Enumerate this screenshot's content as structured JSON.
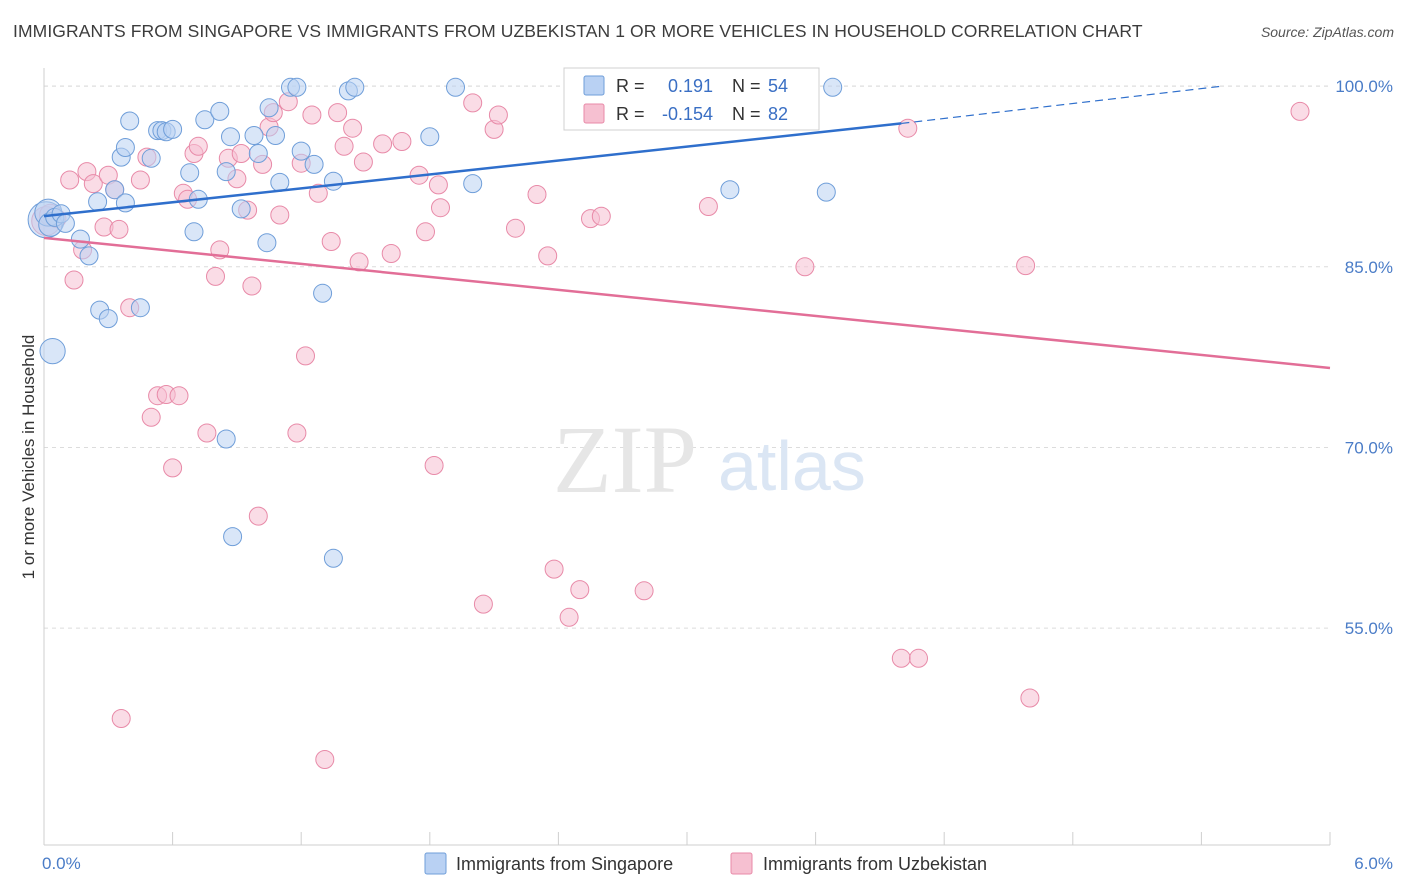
{
  "title": "IMMIGRANTS FROM SINGAPORE VS IMMIGRANTS FROM UZBEKISTAN 1 OR MORE VEHICLES IN HOUSEHOLD CORRELATION CHART",
  "source": "Source: ZipAtlas.com",
  "watermark": {
    "zip": "ZIP",
    "atlas": "atlas"
  },
  "colors": {
    "blue_fill": "#b9d1f3",
    "blue_stroke": "#6f9ed9",
    "blue_line": "#2f6fcc",
    "pink_fill": "#f6c0d1",
    "pink_stroke": "#e88aa8",
    "pink_line": "#e26e97",
    "grid": "#dcdcdc",
    "axis_label": "#4a7cc7"
  },
  "legend_box": {
    "rows": [
      {
        "r_label": "R =",
        "r_value": "0.191",
        "n_label": "N =",
        "n_value": "54",
        "series": "Singapore"
      },
      {
        "r_label": "R =",
        "r_value": "-0.154",
        "n_label": "N =",
        "n_value": "82",
        "series": "Uzbekistan"
      }
    ]
  },
  "chart_data": {
    "type": "scatter",
    "xlabel": "",
    "ylabel": "1 or more Vehicles in Household",
    "xlim": [
      0.0,
      6.0
    ],
    "ylim": [
      37.0,
      101.5
    ],
    "x_ticks": [
      "0.0%",
      "6.0%"
    ],
    "y_ticks": [
      {
        "value": 100.0,
        "label": "100.0%"
      },
      {
        "value": 85.0,
        "label": "85.0%"
      },
      {
        "value": 70.0,
        "label": "70.0%"
      },
      {
        "value": 55.0,
        "label": "55.0%"
      }
    ],
    "legend": [
      "Immigrants from Singapore",
      "Immigrants from Uzbekistan"
    ],
    "series": [
      {
        "name": "Immigrants from Singapore",
        "color": "#6f9ed9",
        "trend": {
          "x0": 0.0,
          "y0": 89.2,
          "x1": 4.0,
          "y1": 96.9,
          "dashed_to_x": 5.5,
          "dashed_to_y": 100.0
        },
        "points": [
          [
            0.01,
            88.9,
            2
          ],
          [
            0.02,
            89.5,
            1.5
          ],
          [
            0.03,
            88.5,
            1.3
          ],
          [
            0.05,
            89.1,
            1
          ],
          [
            0.08,
            89.4,
            1
          ],
          [
            0.1,
            88.6,
            1
          ],
          [
            0.17,
            87.3,
            1
          ],
          [
            0.21,
            85.9,
            1
          ],
          [
            0.04,
            78.0,
            1.4
          ],
          [
            0.26,
            81.4,
            1
          ],
          [
            0.3,
            80.7,
            1
          ],
          [
            0.45,
            81.6,
            1
          ],
          [
            0.33,
            91.4,
            1
          ],
          [
            0.38,
            90.3,
            1
          ],
          [
            0.25,
            90.4,
            1
          ],
          [
            0.36,
            94.1,
            1
          ],
          [
            0.38,
            94.9,
            1
          ],
          [
            0.4,
            97.1,
            1
          ],
          [
            0.5,
            94.0,
            1
          ],
          [
            0.53,
            96.3,
            1
          ],
          [
            0.55,
            96.3,
            1
          ],
          [
            0.57,
            96.2,
            1
          ],
          [
            0.6,
            96.4,
            1
          ],
          [
            0.68,
            92.8,
            1
          ],
          [
            0.7,
            87.9,
            1
          ],
          [
            0.72,
            90.6,
            1
          ],
          [
            0.75,
            97.2,
            1
          ],
          [
            0.82,
            97.9,
            1
          ],
          [
            0.85,
            92.9,
            1
          ],
          [
            0.87,
            95.8,
            1
          ],
          [
            0.92,
            89.8,
            1
          ],
          [
            0.98,
            95.9,
            1
          ],
          [
            1.0,
            94.4,
            1
          ],
          [
            1.04,
            87.0,
            1
          ],
          [
            1.05,
            98.2,
            1
          ],
          [
            1.08,
            95.9,
            1
          ],
          [
            1.1,
            92.0,
            1
          ],
          [
            1.15,
            99.9,
            1
          ],
          [
            1.18,
            99.9,
            1
          ],
          [
            1.2,
            94.6,
            1
          ],
          [
            1.26,
            93.5,
            1
          ],
          [
            1.3,
            82.8,
            1
          ],
          [
            1.35,
            92.1,
            1
          ],
          [
            1.42,
            99.6,
            1
          ],
          [
            1.45,
            99.9,
            1
          ],
          [
            1.8,
            95.8,
            1
          ],
          [
            1.92,
            99.9,
            1
          ],
          [
            0.85,
            70.7,
            1
          ],
          [
            0.88,
            62.6,
            1
          ],
          [
            1.35,
            60.8,
            1
          ],
          [
            3.2,
            91.4,
            1
          ],
          [
            3.65,
            91.2,
            1
          ],
          [
            3.68,
            99.9,
            1
          ],
          [
            2.0,
            91.9,
            1
          ]
        ]
      },
      {
        "name": "Immigrants from Uzbekistan",
        "color": "#e88aa8",
        "trend": {
          "x0": 0.0,
          "y0": 87.4,
          "x1": 6.0,
          "y1": 76.6
        },
        "points": [
          [
            0.01,
            88.8,
            1.6
          ],
          [
            0.03,
            89.3,
            1.2
          ],
          [
            0.06,
            89.0,
            1
          ],
          [
            0.12,
            92.2,
            1
          ],
          [
            0.14,
            83.9,
            1
          ],
          [
            0.18,
            86.4,
            1
          ],
          [
            0.2,
            92.9,
            1
          ],
          [
            0.23,
            91.9,
            1
          ],
          [
            0.28,
            88.3,
            1
          ],
          [
            0.3,
            92.6,
            1
          ],
          [
            0.33,
            91.4,
            1
          ],
          [
            0.35,
            88.1,
            1
          ],
          [
            0.4,
            81.6,
            1
          ],
          [
            0.45,
            92.2,
            1
          ],
          [
            0.48,
            94.1,
            1
          ],
          [
            0.5,
            72.5,
            1
          ],
          [
            0.53,
            74.3,
            1
          ],
          [
            0.57,
            74.4,
            1
          ],
          [
            0.6,
            68.3,
            1
          ],
          [
            0.63,
            74.3,
            1
          ],
          [
            0.65,
            91.1,
            1
          ],
          [
            0.67,
            90.6,
            1
          ],
          [
            0.7,
            94.4,
            1
          ],
          [
            0.72,
            95.0,
            1
          ],
          [
            0.76,
            71.2,
            1
          ],
          [
            0.8,
            84.2,
            1
          ],
          [
            0.82,
            86.4,
            1
          ],
          [
            0.86,
            94.0,
            1
          ],
          [
            0.9,
            92.3,
            1
          ],
          [
            0.92,
            94.4,
            1
          ],
          [
            0.95,
            89.7,
            1
          ],
          [
            0.97,
            83.4,
            1
          ],
          [
            1.0,
            64.3,
            1
          ],
          [
            1.02,
            93.5,
            1
          ],
          [
            1.05,
            96.6,
            1
          ],
          [
            1.07,
            97.8,
            1
          ],
          [
            1.1,
            89.3,
            1
          ],
          [
            1.14,
            98.7,
            1
          ],
          [
            1.18,
            71.2,
            1
          ],
          [
            1.2,
            93.6,
            1
          ],
          [
            1.22,
            77.6,
            1
          ],
          [
            1.25,
            97.6,
            1
          ],
          [
            1.28,
            91.1,
            1
          ],
          [
            1.31,
            44.1,
            1
          ],
          [
            1.34,
            87.1,
            1
          ],
          [
            1.37,
            97.8,
            1
          ],
          [
            1.4,
            95.0,
            1
          ],
          [
            1.44,
            96.5,
            1
          ],
          [
            1.47,
            85.4,
            1
          ],
          [
            1.49,
            93.7,
            1
          ],
          [
            1.58,
            95.2,
            1
          ],
          [
            1.62,
            86.1,
            1
          ],
          [
            1.67,
            95.4,
            1
          ],
          [
            1.75,
            92.6,
            1
          ],
          [
            1.78,
            87.9,
            1
          ],
          [
            1.82,
            68.5,
            1
          ],
          [
            1.84,
            91.8,
            1
          ],
          [
            1.85,
            89.9,
            1
          ],
          [
            2.0,
            98.6,
            1
          ],
          [
            2.05,
            57.0,
            1
          ],
          [
            2.1,
            96.4,
            1
          ],
          [
            2.12,
            97.6,
            1
          ],
          [
            2.2,
            88.2,
            1
          ],
          [
            2.3,
            91.0,
            1
          ],
          [
            2.35,
            85.9,
            1
          ],
          [
            2.38,
            59.9,
            1
          ],
          [
            2.45,
            55.9,
            1
          ],
          [
            2.5,
            58.2,
            1
          ],
          [
            2.55,
            89.0,
            1
          ],
          [
            2.6,
            89.2,
            1
          ],
          [
            2.8,
            58.1,
            1
          ],
          [
            2.9,
            98.1,
            1
          ],
          [
            3.05,
            100.0,
            1
          ],
          [
            3.1,
            90.0,
            1
          ],
          [
            3.55,
            85.0,
            1
          ],
          [
            4.0,
            52.5,
            1
          ],
          [
            4.03,
            96.5,
            1
          ],
          [
            4.08,
            52.5,
            1
          ],
          [
            4.58,
            85.1,
            1
          ],
          [
            4.6,
            49.2,
            1
          ],
          [
            5.86,
            97.9,
            1
          ],
          [
            0.36,
            47.5,
            1
          ]
        ]
      }
    ]
  }
}
